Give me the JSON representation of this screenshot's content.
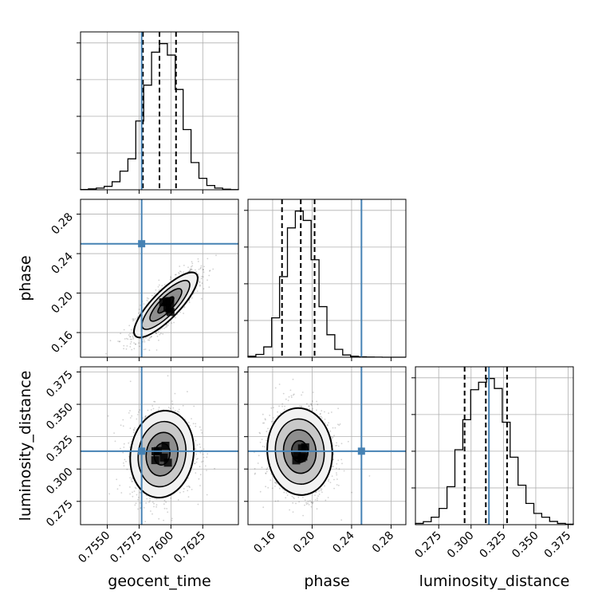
{
  "chart_data": {
    "type": "corner",
    "parameters": [
      "geocent_time",
      "phase",
      "luminosity_distance"
    ],
    "labels": {
      "geocent_time": "geocent_time",
      "phase": "phase",
      "luminosity_distance": "luminosity_distance"
    },
    "ranges": {
      "geocent_time": [
        0.7529,
        0.7653
      ],
      "phase": [
        0.135,
        0.295
      ],
      "luminosity_distance": [
        0.257,
        0.379
      ]
    },
    "ticks": {
      "geocent_time": {
        "values": [
          0.755,
          0.7575,
          0.76,
          0.7625
        ],
        "labels": [
          "0.7550",
          "0.7575",
          "0.7600",
          "0.7625"
        ]
      },
      "phase": {
        "values": [
          0.16,
          0.2,
          0.24,
          0.28
        ],
        "labels": [
          "0.16",
          "0.20",
          "0.24",
          "0.28"
        ]
      },
      "luminosity_distance": {
        "values": [
          0.275,
          0.3,
          0.325,
          0.35,
          0.375
        ],
        "labels": [
          "0.275",
          "0.300",
          "0.325",
          "0.350",
          "0.375"
        ]
      }
    },
    "truths": {
      "geocent_time": 0.7577,
      "phase": 0.25,
      "luminosity_distance": 0.3138
    },
    "quantiles": {
      "geocent_time": [
        0.7578,
        0.7591,
        0.7604
      ],
      "phase": [
        0.1695,
        0.1885,
        0.2025
      ],
      "luminosity_distance": [
        0.295,
        0.3114,
        0.3278
      ]
    },
    "histograms": {
      "geocent_time": {
        "edges": [
          0.7529,
          0.7653
        ],
        "counts": [
          0.1,
          0.3,
          0.6,
          1.2,
          2.8,
          6.5,
          10.8,
          24,
          36.5,
          48,
          51,
          47,
          35,
          21,
          9.5,
          4,
          1.5,
          0.6,
          0.2,
          0.05
        ]
      },
      "phase": {
        "edges": [
          0.135,
          0.295
        ],
        "counts": [
          0.5,
          1.5,
          5.5,
          21,
          43,
          69,
          78,
          73,
          52,
          27,
          12,
          4.2,
          1.2,
          0.5,
          0.2,
          0.1,
          0.05,
          0,
          0,
          0
        ]
      },
      "luminosity_distance": {
        "edges": [
          0.257,
          0.379
        ],
        "counts": [
          0.5,
          1.2,
          3,
          6.5,
          15.2,
          30,
          42,
          54,
          57,
          58.5,
          54.5,
          41,
          27,
          15.8,
          8.5,
          4.5,
          3,
          1.3,
          0.5,
          0.2
        ]
      }
    },
    "contours": {
      "phase_vs_geocent_time": {
        "center": [
          0.7596,
          0.188
        ],
        "sigma": [
          0.00125,
          0.0165
        ],
        "rho": 0.82
      },
      "luminosity_distance_vs_geocent_time": {
        "center": [
          0.7593,
          0.3115
        ],
        "sigma": [
          0.00125,
          0.0168
        ],
        "rho": 0.1
      },
      "luminosity_distance_vs_phase": {
        "center": [
          0.1875,
          0.3135
        ],
        "sigma": [
          0.0165,
          0.0168
        ],
        "rho": -0.05
      }
    },
    "contour_levels_sigma": [
      0.5,
      1.0,
      1.5,
      2.0
    ],
    "truth_color": "#4682b4",
    "hist_color": "#000000",
    "grid": true
  }
}
